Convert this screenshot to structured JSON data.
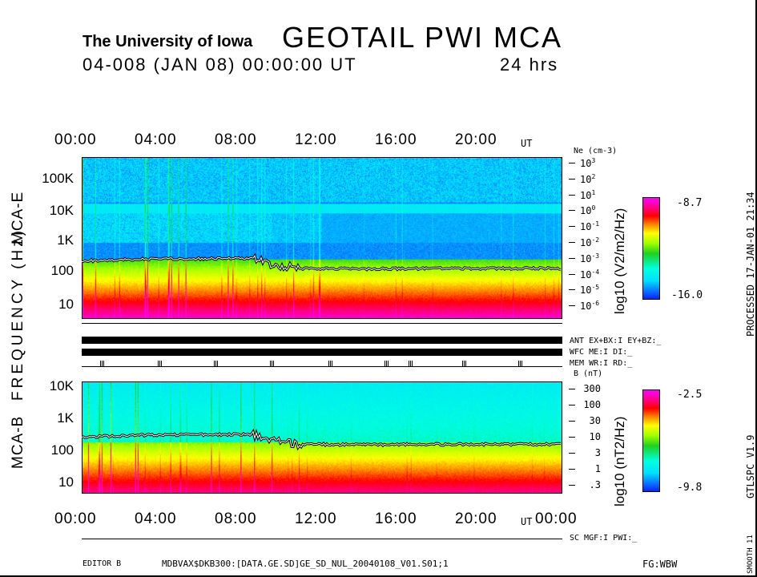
{
  "header": {
    "institution": "The University of Iowa",
    "title": "GEOTAIL  PWI  MCA",
    "date_line": "04-008 (JAN 08) 00:00:00  UT",
    "duration": "24 hrs"
  },
  "side": {
    "processed": "PROCESSED 17-JAN-01  21:34",
    "version": "GTLSPC   V1.9",
    "smooth": "SMOOTH 11"
  },
  "labels": {
    "freq_axis": "FREQUENCY (Hz)",
    "mca_e": "MCA-E",
    "mca_b": "MCA-B",
    "ut": "UT"
  },
  "status": {
    "ant": "ANT EX+BX:I EY+BZ:_",
    "wfc": "WFC ME:I     DI:_",
    "mem": "MEM WR:I     RD:_",
    "sc": "SC MGF:I     PWI:_"
  },
  "footer": {
    "editor": "EDITOR B",
    "file": "MDBVAX$DKB300:[DATA.GE.SD]GE_SD_NUL_20040108_V01.S01;1",
    "fg": "FG:WBW"
  },
  "chart_data": [
    {
      "type": "heatmap",
      "title": "MCA-E",
      "xlabel": "UT",
      "ylabel": "FREQUENCY (Hz)",
      "x_ticks": [
        "00:00",
        "04:00",
        "08:00",
        "12:00",
        "16:00",
        "20:00"
      ],
      "x_range_hours": [
        0,
        24
      ],
      "y_ticks": [
        "100K",
        "10K",
        "1K",
        "100",
        "10"
      ],
      "y_scale": "log",
      "y_range_hz": [
        5.6,
        311000
      ],
      "right_axis": {
        "label": "Ne (cm-3)",
        "ticks": [
          "10^3",
          "10^2",
          "10^1",
          "10^0",
          "10^-1",
          "10^-2",
          "10^-3",
          "10^-4",
          "10^-5",
          "10^-6"
        ]
      },
      "colorbar": {
        "label": "log10 (V2/m2/Hz)",
        "max": "-8.7",
        "min": "-16.0"
      },
      "overlay_line": {
        "hours": [
          0,
          3,
          6,
          8.6,
          9.5,
          11,
          14,
          18,
          24
        ],
        "hz": [
          280,
          320,
          330,
          340,
          220,
          170,
          165,
          170,
          170
        ]
      }
    },
    {
      "type": "heatmap",
      "title": "MCA-B",
      "xlabel": "UT",
      "ylabel": "FREQUENCY (Hz)",
      "x_ticks": [
        "00:00",
        "04:00",
        "08:00",
        "12:00",
        "16:00",
        "20:00",
        "00:00"
      ],
      "x_range_hours": [
        0,
        24
      ],
      "y_ticks": [
        "10K",
        "1K",
        "100",
        "10"
      ],
      "y_scale": "log",
      "y_range_hz": [
        5.6,
        13000
      ],
      "right_axis": {
        "label": "B (nT)",
        "ticks": [
          "300",
          "100",
          "30",
          "10",
          "3",
          "1",
          ".3"
        ]
      },
      "colorbar": {
        "label": "log10 (nT2/Hz)",
        "max": "-2.5",
        "min": "-9.8"
      },
      "overlay_line": {
        "hours": [
          0,
          3,
          6,
          8.6,
          9.5,
          11,
          14,
          18,
          24
        ],
        "hz": [
          280,
          320,
          330,
          340,
          220,
          170,
          165,
          170,
          170
        ]
      }
    }
  ],
  "mem_marks_hours": [
    0.9,
    3.8,
    6.6,
    9.4,
    12.3,
    15.1,
    16.3,
    19.0,
    21.8
  ]
}
